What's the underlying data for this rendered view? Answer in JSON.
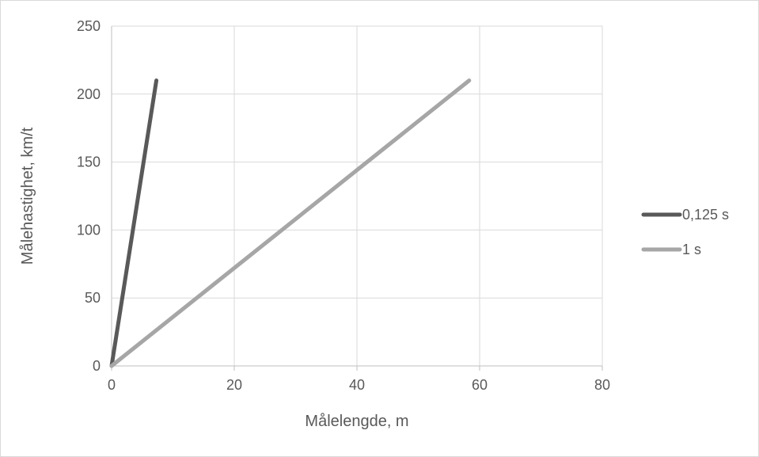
{
  "chart_data": {
    "type": "line",
    "xlabel": "Målelengde, m",
    "ylabel": "Målehastighet, km/t",
    "xlim": [
      0,
      80
    ],
    "ylim": [
      0,
      250
    ],
    "x_ticks": [
      0,
      20,
      40,
      60,
      80
    ],
    "y_ticks": [
      0,
      50,
      100,
      150,
      200,
      250
    ],
    "grid": true,
    "legend_position": "right",
    "series": [
      {
        "name": "0,125 s",
        "color": "#595959",
        "points": [
          [
            0,
            0
          ],
          [
            7.3,
            210
          ]
        ]
      },
      {
        "name": "1 s",
        "color": "#a6a6a6",
        "points": [
          [
            0,
            0
          ],
          [
            58.3,
            210
          ]
        ]
      }
    ]
  }
}
